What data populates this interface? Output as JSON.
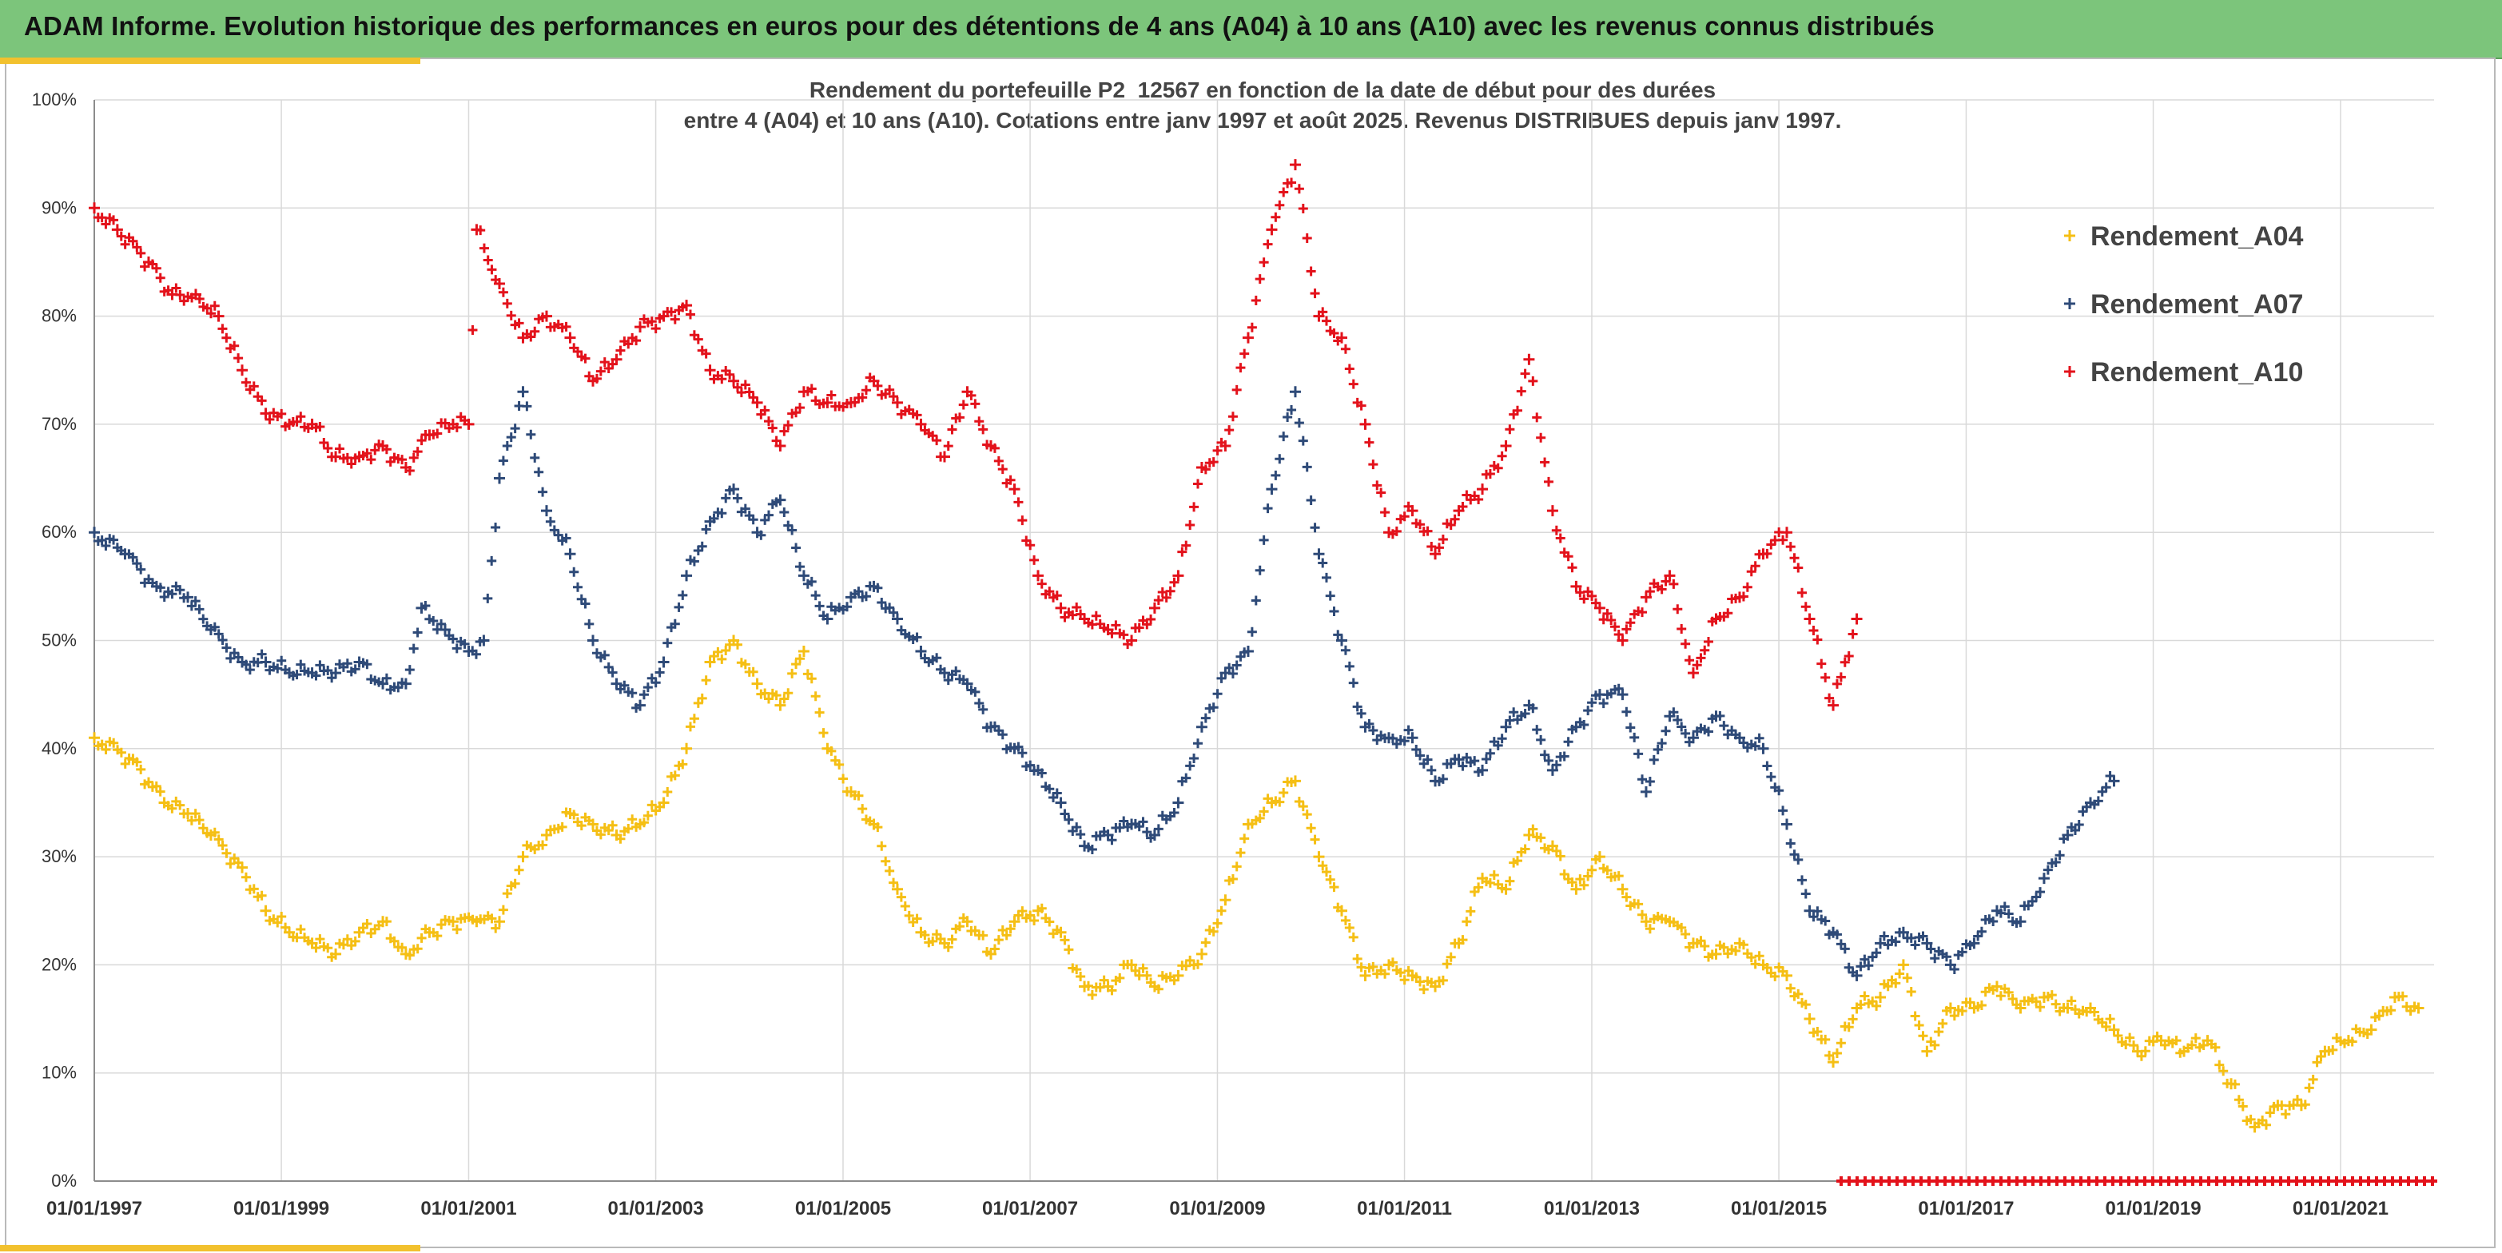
{
  "header": {
    "title": "ADAM Informe. Evolution historique des performances en euros pour des détentions de 4 ans (A04) à 10 ans (A10) avec les revenus connus distribués"
  },
  "colors": {
    "banner": "#7cc57b",
    "accent": "#f2c12e",
    "A04": "#f5bf14",
    "A07": "#2e4a78",
    "A10": "#e3121b",
    "grid": "#d9d9d9"
  },
  "chart_data": {
    "type": "scatter",
    "title": "Rendement du portefeuille P2_12567 en fonction de la date de début pour des durées",
    "subtitle": "entre 4 (A04) et 10 ans (A10). Cotations entre janv 1997 et août 2025. Revenus DISTRIBUES depuis janv 1997.",
    "xlabel": "",
    "ylabel": "",
    "x_type": "date",
    "xlim": [
      "1997-01-01",
      "2022-01-01"
    ],
    "ylim": [
      0,
      100
    ],
    "y_unit": "%",
    "grid": true,
    "marker": "+",
    "legend_position": "top-right",
    "x_ticks": [
      "01/01/1997",
      "01/01/1999",
      "01/01/2001",
      "01/01/2003",
      "01/01/2005",
      "01/01/2007",
      "01/01/2009",
      "01/01/2011",
      "01/01/2013",
      "01/01/2015",
      "01/01/2017",
      "01/01/2019",
      "01/01/2021"
    ],
    "y_ticks": [
      "0%",
      "10%",
      "20%",
      "30%",
      "40%",
      "50%",
      "60%",
      "70%",
      "80%",
      "90%",
      "100%"
    ],
    "series": [
      {
        "name": "Rendement_A04",
        "color": "#f5bf14",
        "points": [
          [
            "1997-01-01",
            41
          ],
          [
            "1997-06-01",
            39
          ],
          [
            "1997-10-01",
            35
          ],
          [
            "1998-01-01",
            34
          ],
          [
            "1998-04-01",
            32
          ],
          [
            "1998-08-01",
            29
          ],
          [
            "1998-11-01",
            25
          ],
          [
            "1999-02-01",
            23
          ],
          [
            "1999-05-01",
            22
          ],
          [
            "1999-08-01",
            21
          ],
          [
            "1999-11-01",
            23
          ],
          [
            "2000-02-01",
            24
          ],
          [
            "2000-05-01",
            21
          ],
          [
            "2000-08-01",
            23
          ],
          [
            "2000-11-01",
            24
          ],
          [
            "2001-02-01",
            24
          ],
          [
            "2001-05-01",
            24
          ],
          [
            "2001-08-01",
            30
          ],
          [
            "2001-11-01",
            32
          ],
          [
            "2002-02-01",
            34
          ],
          [
            "2002-05-01",
            33
          ],
          [
            "2002-08-01",
            32
          ],
          [
            "2002-11-01",
            33
          ],
          [
            "2003-02-01",
            35
          ],
          [
            "2003-05-01",
            40
          ],
          [
            "2003-08-01",
            48
          ],
          [
            "2003-11-01",
            50
          ],
          [
            "2004-02-01",
            46
          ],
          [
            "2004-05-01",
            44
          ],
          [
            "2004-08-01",
            49
          ],
          [
            "2004-11-01",
            40
          ],
          [
            "2005-02-01",
            36
          ],
          [
            "2005-05-01",
            33
          ],
          [
            "2005-08-01",
            27
          ],
          [
            "2005-11-01",
            23
          ],
          [
            "2006-02-01",
            22
          ],
          [
            "2006-05-01",
            24
          ],
          [
            "2006-08-01",
            21
          ],
          [
            "2006-11-01",
            24
          ],
          [
            "2007-02-01",
            25
          ],
          [
            "2007-05-01",
            23
          ],
          [
            "2007-08-01",
            18
          ],
          [
            "2007-11-01",
            18
          ],
          [
            "2008-02-01",
            20
          ],
          [
            "2008-05-01",
            18
          ],
          [
            "2008-08-01",
            19
          ],
          [
            "2008-11-01",
            21
          ],
          [
            "2009-02-01",
            26
          ],
          [
            "2009-05-01",
            33
          ],
          [
            "2009-08-01",
            35
          ],
          [
            "2009-11-01",
            37
          ],
          [
            "2010-02-01",
            30
          ],
          [
            "2010-05-01",
            25
          ],
          [
            "2010-08-01",
            19
          ],
          [
            "2010-11-01",
            20
          ],
          [
            "2011-02-01",
            19
          ],
          [
            "2011-05-01",
            18
          ],
          [
            "2011-08-01",
            22
          ],
          [
            "2011-11-01",
            28
          ],
          [
            "2012-02-01",
            27
          ],
          [
            "2012-05-01",
            32
          ],
          [
            "2012-08-01",
            31
          ],
          [
            "2012-11-01",
            27
          ],
          [
            "2013-02-01",
            30
          ],
          [
            "2013-05-01",
            27
          ],
          [
            "2013-08-01",
            24
          ],
          [
            "2013-11-01",
            24
          ],
          [
            "2014-02-01",
            22
          ],
          [
            "2014-05-01",
            21
          ],
          [
            "2014-08-01",
            22
          ],
          [
            "2014-11-01",
            20
          ],
          [
            "2015-02-01",
            19
          ],
          [
            "2015-05-01",
            15
          ],
          [
            "2015-08-01",
            11
          ],
          [
            "2015-11-01",
            16
          ],
          [
            "2016-02-01",
            17
          ],
          [
            "2016-05-01",
            20
          ],
          [
            "2016-08-01",
            12
          ],
          [
            "2016-11-01",
            16
          ],
          [
            "2017-02-01",
            16
          ],
          [
            "2017-05-01",
            18
          ],
          [
            "2017-08-01",
            16
          ],
          [
            "2017-11-01",
            17
          ],
          [
            "2018-02-01",
            16
          ],
          [
            "2018-05-01",
            16
          ],
          [
            "2018-08-01",
            14
          ],
          [
            "2018-11-01",
            12
          ],
          [
            "2019-02-01",
            13
          ],
          [
            "2019-05-01",
            12
          ],
          [
            "2019-08-01",
            13
          ],
          [
            "2019-11-01",
            9
          ],
          [
            "2020-02-01",
            5
          ],
          [
            "2020-05-01",
            7
          ],
          [
            "2020-08-01",
            7
          ],
          [
            "2020-11-01",
            12
          ],
          [
            "2021-02-01",
            13
          ],
          [
            "2021-05-01",
            14
          ],
          [
            "2021-08-01",
            17
          ],
          [
            "2021-11-01",
            16
          ]
        ]
      },
      {
        "name": "Rendement_A07",
        "color": "#2e4a78",
        "points": [
          [
            "1997-01-01",
            60
          ],
          [
            "1997-05-01",
            58
          ],
          [
            "1997-09-01",
            55
          ],
          [
            "1998-01-01",
            54
          ],
          [
            "1998-04-01",
            51
          ],
          [
            "1998-08-01",
            48
          ],
          [
            "1998-11-01",
            48
          ],
          [
            "1999-02-01",
            47
          ],
          [
            "1999-05-01",
            47
          ],
          [
            "1999-08-01",
            47
          ],
          [
            "1999-11-01",
            48
          ],
          [
            "2000-02-01",
            46
          ],
          [
            "2000-05-01",
            46
          ],
          [
            "2000-07-01",
            53
          ],
          [
            "2000-10-01",
            51
          ],
          [
            "2001-01-01",
            49
          ],
          [
            "2001-03-01",
            50
          ],
          [
            "2001-05-01",
            65
          ],
          [
            "2001-08-01",
            73
          ],
          [
            "2001-11-01",
            62
          ],
          [
            "2002-02-01",
            58
          ],
          [
            "2002-05-01",
            50
          ],
          [
            "2002-08-01",
            46
          ],
          [
            "2002-11-01",
            44
          ],
          [
            "2003-02-01",
            48
          ],
          [
            "2003-05-01",
            56
          ],
          [
            "2003-08-01",
            61
          ],
          [
            "2003-11-01",
            64
          ],
          [
            "2004-02-01",
            60
          ],
          [
            "2004-05-01",
            63
          ],
          [
            "2004-08-01",
            56
          ],
          [
            "2004-11-01",
            52
          ],
          [
            "2005-02-01",
            54
          ],
          [
            "2005-05-01",
            55
          ],
          [
            "2005-08-01",
            52
          ],
          [
            "2005-11-01",
            49
          ],
          [
            "2006-02-01",
            47
          ],
          [
            "2006-05-01",
            46
          ],
          [
            "2006-08-01",
            42
          ],
          [
            "2006-11-01",
            40
          ],
          [
            "2007-02-01",
            38
          ],
          [
            "2007-05-01",
            35
          ],
          [
            "2007-08-01",
            31
          ],
          [
            "2007-11-01",
            32
          ],
          [
            "2008-02-01",
            33
          ],
          [
            "2008-05-01",
            32
          ],
          [
            "2008-08-01",
            35
          ],
          [
            "2008-11-01",
            42
          ],
          [
            "2009-02-01",
            47
          ],
          [
            "2009-05-01",
            49
          ],
          [
            "2009-08-01",
            64
          ],
          [
            "2009-11-01",
            73
          ],
          [
            "2010-02-01",
            58
          ],
          [
            "2010-05-01",
            50
          ],
          [
            "2010-08-01",
            42
          ],
          [
            "2010-11-01",
            41
          ],
          [
            "2011-02-01",
            41
          ],
          [
            "2011-05-01",
            37
          ],
          [
            "2011-08-01",
            39
          ],
          [
            "2011-11-01",
            38
          ],
          [
            "2012-02-01",
            42
          ],
          [
            "2012-05-01",
            44
          ],
          [
            "2012-08-01",
            38
          ],
          [
            "2012-11-01",
            42
          ],
          [
            "2013-02-01",
            45
          ],
          [
            "2013-05-01",
            45
          ],
          [
            "2013-08-01",
            36
          ],
          [
            "2013-11-01",
            43
          ],
          [
            "2014-02-01",
            41
          ],
          [
            "2014-05-01",
            43
          ],
          [
            "2014-08-01",
            41
          ],
          [
            "2014-11-01",
            40
          ],
          [
            "2015-02-01",
            33
          ],
          [
            "2015-05-01",
            25
          ],
          [
            "2015-08-01",
            23
          ],
          [
            "2015-11-01",
            19
          ],
          [
            "2016-02-01",
            22
          ],
          [
            "2016-05-01",
            23
          ],
          [
            "2016-08-01",
            22
          ],
          [
            "2016-11-01",
            20
          ],
          [
            "2017-02-01",
            22
          ],
          [
            "2017-05-01",
            25
          ],
          [
            "2017-08-01",
            24
          ],
          [
            "2017-11-01",
            28
          ],
          [
            "2018-02-01",
            32
          ],
          [
            "2018-05-01",
            35
          ],
          [
            "2018-08-01",
            37
          ]
        ]
      },
      {
        "name": "Rendement_A10",
        "color": "#e3121b",
        "points": [
          [
            "1997-01-01",
            90
          ],
          [
            "1997-04-01",
            88
          ],
          [
            "1997-08-01",
            85
          ],
          [
            "1997-11-01",
            82
          ],
          [
            "1998-02-01",
            82
          ],
          [
            "1998-05-01",
            80
          ],
          [
            "1998-08-01",
            75
          ],
          [
            "1998-11-01",
            71
          ],
          [
            "1999-02-01",
            70
          ],
          [
            "1999-05-01",
            70
          ],
          [
            "1999-08-01",
            67
          ],
          [
            "1999-11-01",
            67
          ],
          [
            "2000-02-01",
            68
          ],
          [
            "2000-05-01",
            66
          ],
          [
            "2000-08-01",
            69
          ],
          [
            "2000-11-01",
            70
          ],
          [
            "2001-01-01",
            70
          ],
          [
            "2001-02-01",
            88
          ],
          [
            "2001-05-01",
            83
          ],
          [
            "2001-08-01",
            78
          ],
          [
            "2001-11-01",
            80
          ],
          [
            "2002-02-01",
            78
          ],
          [
            "2002-05-01",
            74
          ],
          [
            "2002-08-01",
            76
          ],
          [
            "2002-11-01",
            79
          ],
          [
            "2003-02-01",
            80
          ],
          [
            "2003-05-01",
            81
          ],
          [
            "2003-08-01",
            75
          ],
          [
            "2003-11-01",
            74
          ],
          [
            "2004-02-01",
            72
          ],
          [
            "2004-05-01",
            68
          ],
          [
            "2004-08-01",
            73
          ],
          [
            "2004-11-01",
            72
          ],
          [
            "2005-02-01",
            72
          ],
          [
            "2005-05-01",
            74
          ],
          [
            "2005-08-01",
            72
          ],
          [
            "2005-11-01",
            70
          ],
          [
            "2006-02-01",
            67
          ],
          [
            "2006-05-01",
            73
          ],
          [
            "2006-08-01",
            68
          ],
          [
            "2006-11-01",
            64
          ],
          [
            "2007-02-01",
            56
          ],
          [
            "2007-05-01",
            53
          ],
          [
            "2007-08-01",
            52
          ],
          [
            "2007-11-01",
            51
          ],
          [
            "2008-02-01",
            50
          ],
          [
            "2008-05-01",
            53
          ],
          [
            "2008-08-01",
            56
          ],
          [
            "2008-11-01",
            66
          ],
          [
            "2009-02-01",
            68
          ],
          [
            "2009-05-01",
            78
          ],
          [
            "2009-08-01",
            88
          ],
          [
            "2009-11-01",
            94
          ],
          [
            "2010-02-01",
            80
          ],
          [
            "2010-05-01",
            78
          ],
          [
            "2010-08-01",
            70
          ],
          [
            "2010-11-01",
            60
          ],
          [
            "2011-02-01",
            62
          ],
          [
            "2011-05-01",
            58
          ],
          [
            "2011-08-01",
            62
          ],
          [
            "2011-11-01",
            64
          ],
          [
            "2012-02-01",
            68
          ],
          [
            "2012-05-01",
            76
          ],
          [
            "2012-08-01",
            62
          ],
          [
            "2012-11-01",
            55
          ],
          [
            "2013-02-01",
            53
          ],
          [
            "2013-05-01",
            50
          ],
          [
            "2013-08-01",
            54
          ],
          [
            "2013-11-01",
            56
          ],
          [
            "2014-02-01",
            47
          ],
          [
            "2014-05-01",
            52
          ],
          [
            "2014-08-01",
            54
          ],
          [
            "2014-11-01",
            58
          ],
          [
            "2015-02-01",
            60
          ],
          [
            "2015-05-01",
            52
          ],
          [
            "2015-08-01",
            44
          ],
          [
            "2015-11-01",
            52
          ]
        ]
      }
    ],
    "baseline_markers": {
      "color": "#e3121b",
      "from": "2015-09-01",
      "to": "2022-01-01",
      "y": 0
    }
  }
}
